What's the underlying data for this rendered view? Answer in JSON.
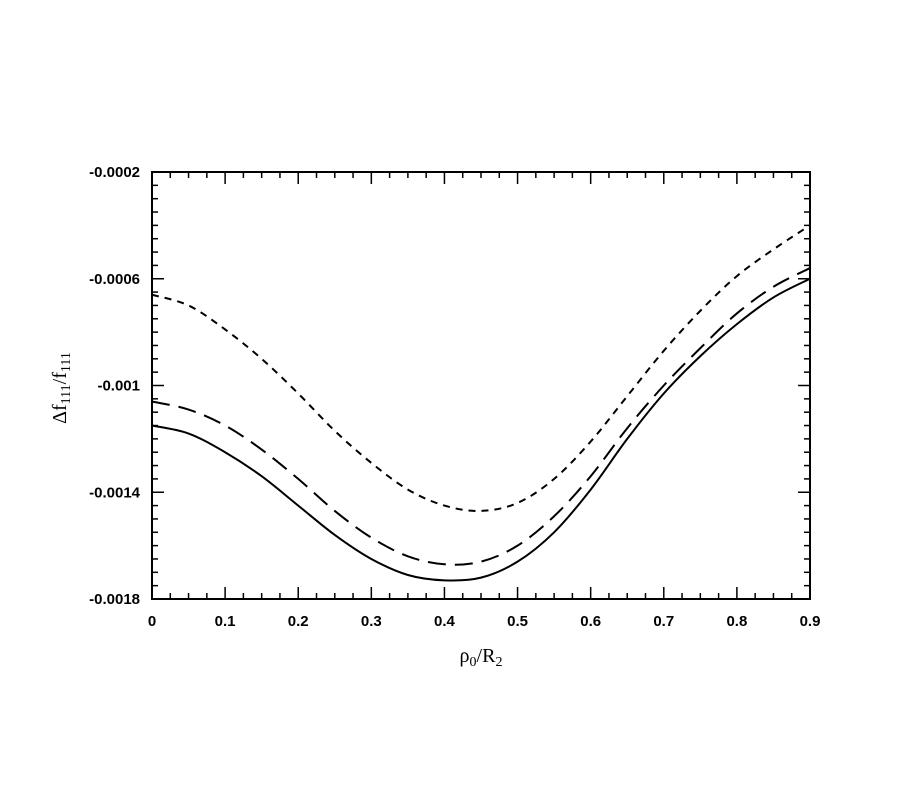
{
  "chart_data": {
    "type": "line",
    "xlabel": "ρ0/R2",
    "ylabel": "Δf111/f111",
    "xlim": [
      0,
      0.9
    ],
    "ylim": [
      -0.0018,
      -0.0002
    ],
    "x_ticks": [
      "0",
      "0.1",
      "0.2",
      "0.3",
      "0.4",
      "0.5",
      "0.6",
      "0.7",
      "0.8",
      "0.9"
    ],
    "y_ticks": [
      "-0.0002",
      "-0.0006",
      "-0.001",
      "-0.0014",
      "-0.0018"
    ],
    "grid": false,
    "series": [
      {
        "style": "solid",
        "x": [
          0,
          0.05,
          0.1,
          0.15,
          0.2,
          0.25,
          0.3,
          0.35,
          0.4,
          0.45,
          0.5,
          0.55,
          0.6,
          0.65,
          0.7,
          0.75,
          0.8,
          0.85,
          0.9
        ],
        "y": [
          -0.00115,
          -0.00118,
          -0.00125,
          -0.00134,
          -0.00145,
          -0.00156,
          -0.00165,
          -0.00171,
          -0.00173,
          -0.00172,
          -0.00166,
          -0.00155,
          -0.00139,
          -0.0012,
          -0.00103,
          -0.00089,
          -0.00077,
          -0.00067,
          -0.0006
        ]
      },
      {
        "style": "long-dash",
        "x": [
          0,
          0.05,
          0.1,
          0.15,
          0.2,
          0.25,
          0.3,
          0.35,
          0.4,
          0.45,
          0.5,
          0.55,
          0.6,
          0.65,
          0.7,
          0.75,
          0.8,
          0.85,
          0.9
        ],
        "y": [
          -0.00106,
          -0.00109,
          -0.00115,
          -0.00124,
          -0.00135,
          -0.00147,
          -0.00157,
          -0.00164,
          -0.00167,
          -0.00166,
          -0.0016,
          -0.00149,
          -0.00134,
          -0.00116,
          -0.001,
          -0.00086,
          -0.00073,
          -0.00063,
          -0.00056
        ]
      },
      {
        "style": "short-dash",
        "x": [
          0,
          0.05,
          0.1,
          0.15,
          0.2,
          0.25,
          0.3,
          0.35,
          0.4,
          0.45,
          0.5,
          0.55,
          0.6,
          0.65,
          0.7,
          0.75,
          0.8,
          0.85,
          0.9
        ],
        "y": [
          -0.00066,
          -0.0007,
          -0.00079,
          -0.0009,
          -0.00103,
          -0.00117,
          -0.00129,
          -0.00139,
          -0.00145,
          -0.00147,
          -0.00144,
          -0.00135,
          -0.00121,
          -0.00104,
          -0.00087,
          -0.00072,
          -0.00059,
          -0.00049,
          -0.0004
        ]
      }
    ]
  }
}
